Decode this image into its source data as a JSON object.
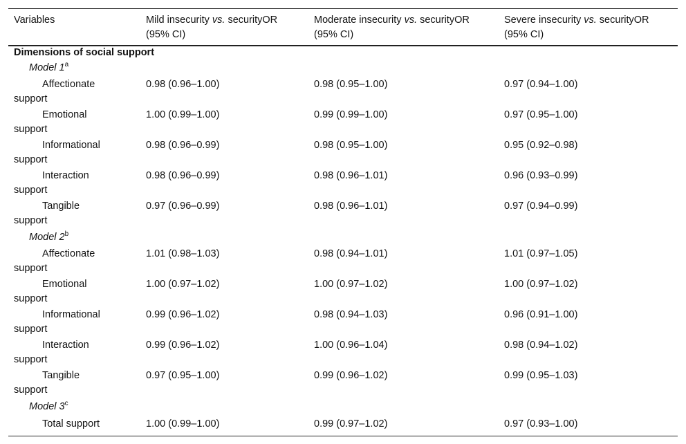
{
  "table": {
    "headers": {
      "variables": "Variables",
      "mild": {
        "pre": "Mild insecurity ",
        "vs": "vs.",
        "post": " securityOR",
        "line2": "(95% CI)"
      },
      "moderate": {
        "pre": "Moderate insecurity ",
        "vs": "vs.",
        "post": " securityOR",
        "line2": "(95% CI)"
      },
      "severe": {
        "pre": "Severe insecurity ",
        "vs": "vs.",
        "post": " securityOR",
        "line2": "(95% CI)"
      }
    },
    "section_title": "Dimensions of social support",
    "models": [
      {
        "label": "Model 1",
        "sup": "a"
      },
      {
        "label": "Model 2",
        "sup": "b"
      },
      {
        "label": "Model 3",
        "sup": "c"
      }
    ],
    "rows": [
      {
        "label1": "Affectionate",
        "label2": "support",
        "mild": "0.98 (0.96–1.00)",
        "moderate": "0.98 (0.95–1.00)",
        "severe": "0.97 (0.94–1.00)"
      },
      {
        "label1": "Emotional",
        "label2": "support",
        "mild": "1.00 (0.99–1.00)",
        "moderate": "0.99 (0.99–1.00)",
        "severe": "0.97 (0.95–1.00)"
      },
      {
        "label1": "Informational",
        "label2": "support",
        "mild": "0.98 (0.96–0.99)",
        "moderate": "0.98 (0.95–1.00)",
        "severe": "0.95 (0.92–0.98)"
      },
      {
        "label1": "Interaction",
        "label2": "support",
        "mild": "0.98 (0.96–0.99)",
        "moderate": "0.98 (0.96–1.01)",
        "severe": "0.96 (0.93–0.99)"
      },
      {
        "label1": "Tangible",
        "label2": "support",
        "mild": "0.97 (0.96–0.99)",
        "moderate": "0.98 (0.96–1.01)",
        "severe": "0.97 (0.94–0.99)"
      },
      {
        "label1": "Affectionate",
        "label2": "support",
        "mild": "1.01 (0.98–1.03)",
        "moderate": "0.98 (0.94–1.01)",
        "severe": "1.01 (0.97–1.05)"
      },
      {
        "label1": "Emotional",
        "label2": "support",
        "mild": "1.00 (0.97–1.02)",
        "moderate": "1.00 (0.97–1.02)",
        "severe": "1.00 (0.97–1.02)"
      },
      {
        "label1": "Informational",
        "label2": "support",
        "mild": "0.99 (0.96–1.02)",
        "moderate": "0.98 (0.94–1.03)",
        "severe": "0.96 (0.91–1.00)"
      },
      {
        "label1": "Interaction",
        "label2": "support",
        "mild": "0.99 (0.96–1.02)",
        "moderate": "1.00 (0.96–1.04)",
        "severe": "0.98 (0.94–1.02)"
      },
      {
        "label1": "Tangible",
        "label2": "support",
        "mild": "0.97 (0.95–1.00)",
        "moderate": "0.99 (0.96–1.02)",
        "severe": "0.99 (0.95–1.03)"
      },
      {
        "label1": "Total support",
        "label2": "",
        "mild": "1.00 (0.99–1.00)",
        "moderate": "0.99 (0.97–1.02)",
        "severe": "0.97 (0.93–1.00)"
      }
    ]
  }
}
